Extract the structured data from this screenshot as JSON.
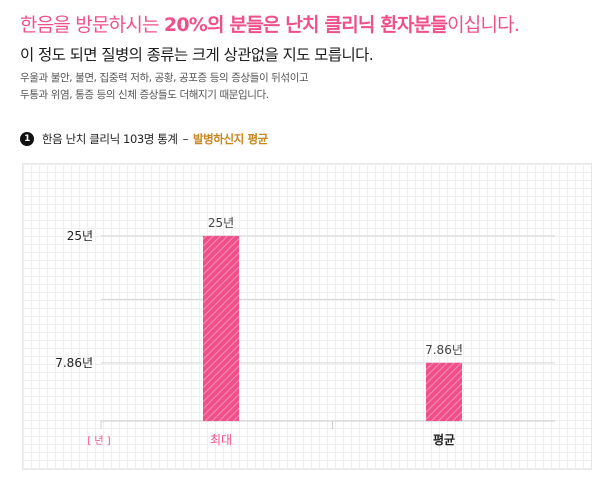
{
  "header": {
    "headline_part1": "한음을 방문하시는 ",
    "headline_bold1": "20%의 분들은 난치 클리닉 환자분들",
    "headline_part2": "이십니다.",
    "subhead": "이 정도 되면 질병의 종류는 크게 상관없을 지도 모릅니다.",
    "desc_line1": "우울과 불안, 불면, 집중력 저하, 공황, 공포증 등의 증상들이 뒤섞이고",
    "desc_line2": "두통과 위염, 통증 등의 신체 증상들도 더해지기 때문입니다."
  },
  "section": {
    "number": "1",
    "title": "한음 난치 클리닉 103명 통계",
    "dash": "–",
    "highlight": "발병하신지 평균"
  },
  "colors": {
    "accent": "#f0508a",
    "highlight": "#c8861e",
    "bar": "#f0508a"
  },
  "chart_data": {
    "type": "bar",
    "categories": [
      "최대",
      "평균"
    ],
    "values": [
      25,
      7.86
    ],
    "data_labels": [
      "25년",
      "7.86년"
    ],
    "y_ticks": [
      {
        "value": 25,
        "label": "25년"
      },
      {
        "value": 7.86,
        "label": "7.86년"
      }
    ],
    "unit_label": "[ 년 ]",
    "ylim": [
      0,
      30.8
    ],
    "grid": true,
    "legend": "none"
  }
}
